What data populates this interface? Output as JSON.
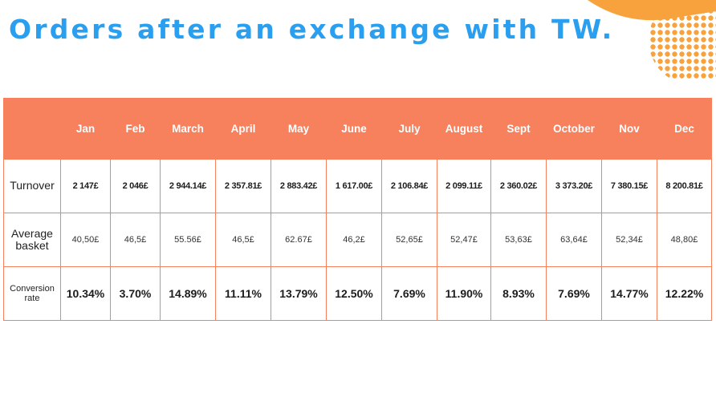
{
  "title": "Orders after an exchange with TW.",
  "colors": {
    "title": "#2a9ff0",
    "header_bg": "#f7805d",
    "accent_orange": "#f7a23c"
  },
  "table": {
    "headers": [
      "",
      "Jan",
      "Feb",
      "March",
      "April",
      "May",
      "June",
      "July",
      "August",
      "Sept",
      "October",
      "Nov",
      "Dec"
    ],
    "rows": [
      {
        "label": "Turnover",
        "values": [
          "2 147£",
          "2 046£",
          "2 944.14£",
          "2 357.81£",
          "2 883.42£",
          "1 617.00£",
          "2 106.84£",
          "2 099.11£",
          "2 360.02£",
          "3 373.20£",
          "7 380.15£",
          "8 200.81£"
        ]
      },
      {
        "label": "Average basket",
        "values": [
          "40,50£",
          "46,5£",
          "55.56£",
          "46,5£",
          "62.67£",
          "46,2£",
          "52,65£",
          "52,47£",
          "53,63£",
          "63,64£",
          "52,34£",
          "48,80£"
        ]
      },
      {
        "label": "Conversion rate",
        "values": [
          "10.34%",
          "3.70%",
          "14.89%",
          "11.11%",
          "13.79%",
          "12.50%",
          "7.69%",
          "11.90%",
          "8.93%",
          "7.69%",
          "14.77%",
          "12.22%"
        ]
      }
    ]
  }
}
